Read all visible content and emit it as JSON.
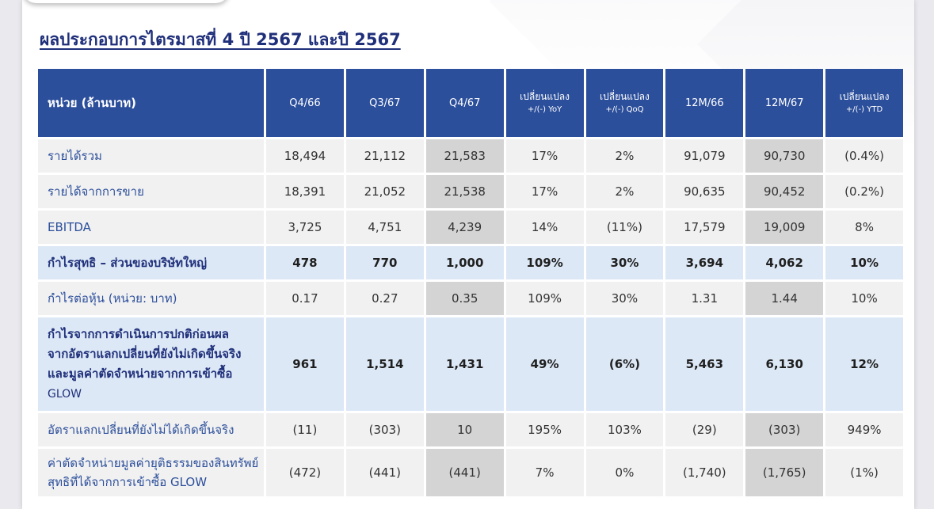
{
  "title": "ผลประกอบการไตรมาสที่ 4 ปี 2567 และปี 2567",
  "header": {
    "unit": "หน่วย (ล้านบาท)",
    "columns": [
      {
        "label": "Q4/66",
        "sub": ""
      },
      {
        "label": "Q3/67",
        "sub": ""
      },
      {
        "label": "Q4/67",
        "sub": ""
      },
      {
        "label": "เปลี่ยนแปลง",
        "sub": "+/(-) YoY"
      },
      {
        "label": "เปลี่ยนแปลง",
        "sub": "+/(-) QoQ"
      },
      {
        "label": "12M/66",
        "sub": ""
      },
      {
        "label": "12M/67",
        "sub": ""
      },
      {
        "label": "เปลี่ยนแปลง",
        "sub": "+/(-) YTD"
      }
    ]
  },
  "rows": [
    {
      "label": "รายได้รวม",
      "values": [
        "18,494",
        "21,112",
        "21,583",
        "17%",
        "2%",
        "91,079",
        "90,730",
        "(0.4%)"
      ]
    },
    {
      "label": "รายได้จากการขาย",
      "values": [
        "18,391",
        "21,052",
        "21,538",
        "17%",
        "2%",
        "90,635",
        "90,452",
        "(0.2%)"
      ]
    },
    {
      "label": "EBITDA",
      "values": [
        "3,725",
        "4,751",
        "4,239",
        "14%",
        "(11%)",
        "17,579",
        "19,009",
        "8%"
      ]
    },
    {
      "label": "กำไรสุทธิ – ส่วนของบริษัทใหญ่",
      "values": [
        "478",
        "770",
        "1,000",
        "109%",
        "30%",
        "3,694",
        "4,062",
        "10%"
      ]
    },
    {
      "label": "กำไรต่อหุ้น (หน่วย: บาท)",
      "values": [
        "0.17",
        "0.27",
        "0.35",
        "109%",
        "30%",
        "1.31",
        "1.44",
        "10%"
      ]
    },
    {
      "label_lines": [
        "กำไรจากการดำเนินการปกติก่อนผล",
        "จากอัตราแลกเปลี่ยนที่ยังไม่เกิดขึ้นจริง",
        "และมูลค่าตัดจำหน่ายจากการเข้าซื้อ",
        "GLOW"
      ],
      "values": [
        "961",
        "1,514",
        "1,431",
        "49%",
        "(6%)",
        "5,463",
        "6,130",
        "12%"
      ]
    },
    {
      "label": "อัตราแลกเปลี่ยนที่ยังไม่ได้เกิดขึ้นจริง",
      "values": [
        "(11)",
        "(303)",
        "10",
        "195%",
        "103%",
        "(29)",
        "(303)",
        "949%"
      ]
    },
    {
      "label_lines": [
        "ค่าตัดจำหน่ายมูลค่ายุติธรรมของสินทรัพย์",
        "สุทธิที่ได้จากการเข้าซื้อ  GLOW"
      ],
      "values": [
        "(472)",
        "(441)",
        "(441)",
        "7%",
        "0%",
        "(1,740)",
        "(1,765)",
        "(1%)"
      ]
    }
  ]
}
